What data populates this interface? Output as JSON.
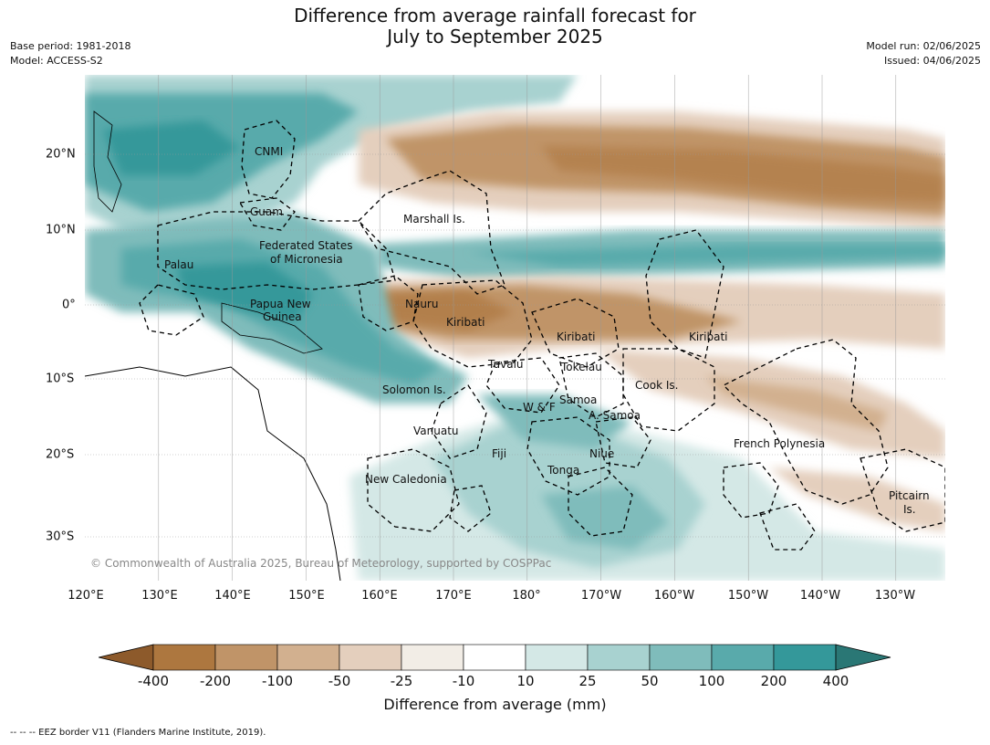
{
  "title_line1": "Difference from average rainfall forecast for",
  "title_line2": "July to September 2025",
  "meta_left": {
    "base_period": "Base period: 1981-2018",
    "model": "Model: ACCESS-S2"
  },
  "meta_right": {
    "model_run": "Model run: 02/06/2025",
    "issued": "Issued: 04/06/2025"
  },
  "lon_ticks": [
    "120°E",
    "130°E",
    "140°E",
    "150°E",
    "160°E",
    "170°E",
    "180°",
    "170°W",
    "160°W",
    "150°W",
    "140°W",
    "130°W"
  ],
  "lat_ticks": [
    "20°N",
    "10°N",
    "0°",
    "10°S",
    "20°S",
    "30°S"
  ],
  "places": [
    "CNMI",
    "Guam",
    "Marshall Is.",
    "Federated States",
    "of Micronesia",
    "Palau",
    "Papua New",
    "Guinea",
    "Nauru",
    "Kiribati",
    "Kiribati",
    "Kiribati",
    "Tuvalu",
    "Tokelau",
    "Cook Is.",
    "Solomon Is.",
    "W & F",
    "Samoa",
    "A. Samoa",
    "Vanuatu",
    "Fiji",
    "Niue",
    "Tonga",
    "French Polynesia",
    "New Caledonia",
    "Pitcairn",
    "Is."
  ],
  "copyright": "© Commonwealth of Australia 2025, Bureau of Meteorology, supported by COSPPac",
  "colorbar": {
    "ticks": [
      "-400",
      "-200",
      "-100",
      "-50",
      "-25",
      "-10",
      "10",
      "25",
      "50",
      "100",
      "200",
      "400"
    ],
    "colors": [
      "#8d5a2b",
      "#ad773f",
      "#c09468",
      "#d2b08f",
      "#e4cfbd",
      "#f2ede6",
      "#ffffff",
      "#d4e8e6",
      "#a8d2d0",
      "#7fbcbb",
      "#59aaab",
      "#34989a",
      "#2a7775"
    ],
    "label": "Difference from average (mm)"
  },
  "footnote": "--  --  -- EEZ border V11 (Flanders Marine Institute, 2019)."
}
